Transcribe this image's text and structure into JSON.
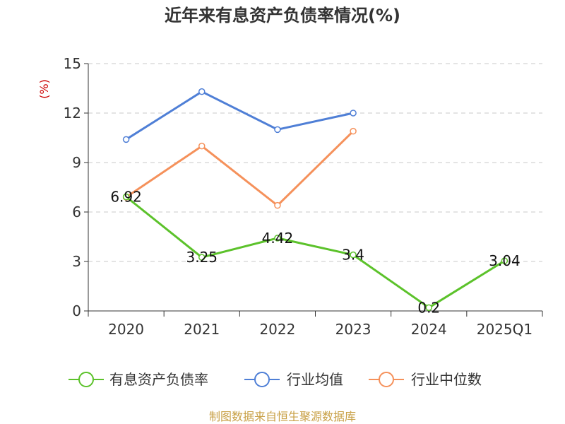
{
  "chart_data": {
    "type": "line",
    "title": "近年来有息资产负债率情况(%)",
    "unit_label": "(%)",
    "categories": [
      "2020",
      "2021",
      "2022",
      "2023",
      "2024",
      "2025Q1"
    ],
    "ylim": [
      0,
      15
    ],
    "yticks": [
      0,
      3,
      6,
      9,
      12,
      15
    ],
    "grid": true,
    "legend_position": "bottom",
    "series": [
      {
        "name": "有息资产负债率",
        "color": "#5cc22b",
        "values": [
          6.92,
          3.25,
          4.42,
          3.4,
          0.2,
          3.04
        ],
        "labels": [
          "6.92",
          "3.25",
          "4.42",
          "3.4",
          "0.2",
          "3.04"
        ]
      },
      {
        "name": "行业均值",
        "color": "#4f7fd6",
        "values": [
          10.4,
          13.3,
          11.0,
          12.0,
          null,
          null
        ]
      },
      {
        "name": "行业中位数",
        "color": "#f5915b",
        "values": [
          6.9,
          10.0,
          6.4,
          10.9,
          null,
          null
        ]
      }
    ],
    "source": "制图数据来自恒生聚源数据库"
  }
}
